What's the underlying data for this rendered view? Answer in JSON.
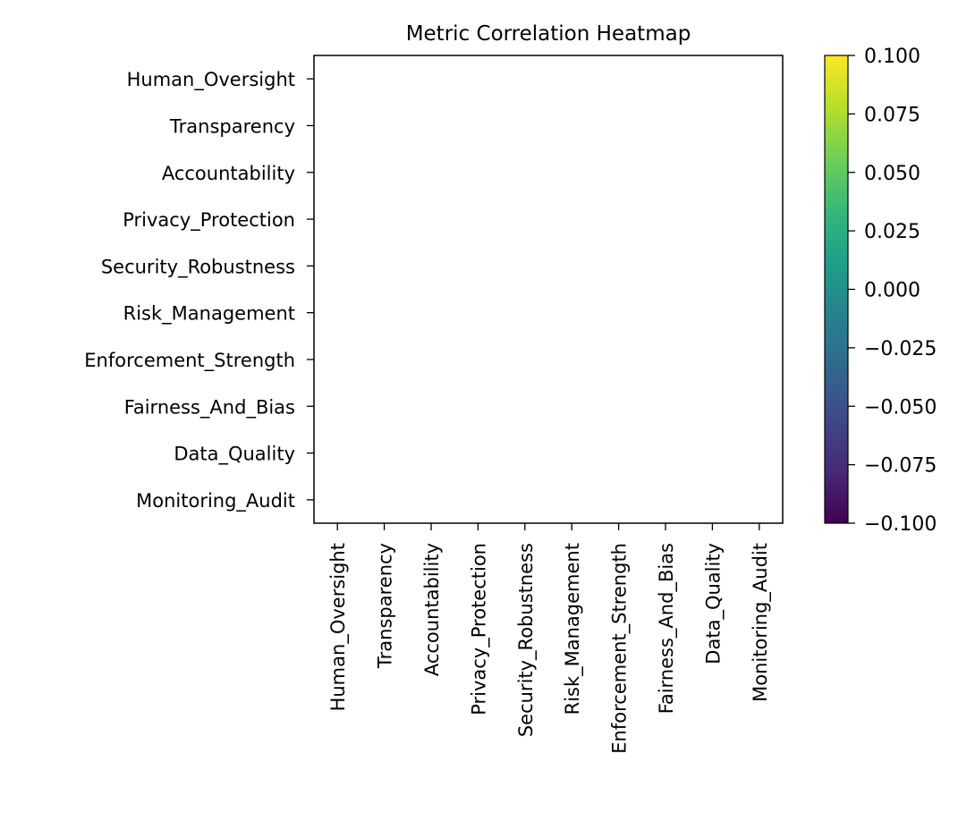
{
  "chart_data": {
    "type": "heatmap",
    "title": "Metric Correlation Heatmap",
    "labels": [
      "Human_Oversight",
      "Transparency",
      "Accountability",
      "Privacy_Protection",
      "Security_Robustness",
      "Risk_Management",
      "Enforcement_Strength",
      "Fairness_And_Bias",
      "Data_Quality",
      "Monitoring_Audit"
    ],
    "values": null,
    "colorbar": {
      "colormap": "viridis",
      "range": [
        -0.1,
        0.1
      ],
      "ticks": [
        "0.100",
        "0.075",
        "0.050",
        "0.025",
        "0.000",
        "−0.025",
        "−0.050",
        "−0.075",
        "−0.100"
      ],
      "tick_values": [
        0.1,
        0.075,
        0.05,
        0.025,
        0.0,
        -0.025,
        -0.05,
        -0.075,
        -0.1
      ],
      "colors": [
        "#440154",
        "#482878",
        "#3e4989",
        "#31688e",
        "#26828e",
        "#1f9e89",
        "#35b779",
        "#6ece58",
        "#b5de2b",
        "#fde725"
      ]
    },
    "grid": false,
    "legend": "colorbar-right"
  }
}
